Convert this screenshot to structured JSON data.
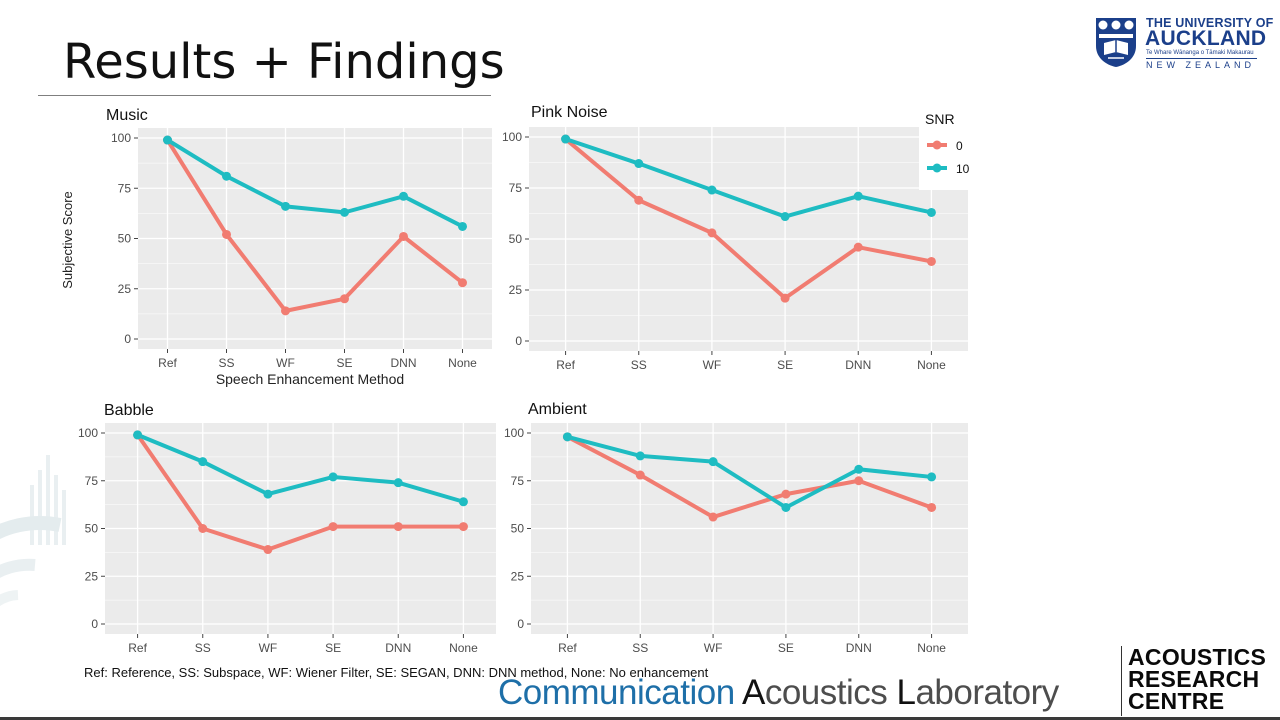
{
  "slide": {
    "title": "Results + Findings",
    "footnote": "Ref: Reference,  SS: Subspace,  WF: Wiener Filter,  SE: SEGAN,  DNN: DNN method,  None: No enhancement"
  },
  "logos": {
    "university": {
      "line1": "THE UNIVERSITY OF",
      "line2": "AUCKLAND",
      "line3": "Te Whare Wānanga o Tāmaki Makaurau",
      "line4": "NEW ZEALAND"
    },
    "lab": {
      "part1": "Communication ",
      "part2": "A",
      "part3": "coustics ",
      "part4": "L",
      "part5": "aboratory"
    },
    "centre": {
      "line1": "ACOUSTICS",
      "line2": "RESEARCH",
      "line3": "CENTRE"
    }
  },
  "colors": {
    "snr_0": "#f17c71",
    "snr_10": "#1ebcc2",
    "panel_bg": "#ebebeb",
    "grid": "#ffffff",
    "brand": "#1b3f8a"
  },
  "legend": {
    "title": "SNR",
    "items": [
      "0",
      "10"
    ]
  },
  "chart_data": [
    {
      "type": "line",
      "title": "Music",
      "xlabel": "Speech Enhancement Method",
      "ylabel": "Subjective Score",
      "categories": [
        "Ref",
        "SS",
        "WF",
        "SE",
        "DNN",
        "None"
      ],
      "yticks": [
        "0",
        "25",
        "50",
        "75",
        "100"
      ],
      "ylim": [
        0,
        100
      ],
      "grid": true,
      "series": [
        {
          "name": "0",
          "values": [
            99,
            52,
            14,
            20,
            51,
            28
          ]
        },
        {
          "name": "10",
          "values": [
            99,
            81,
            66,
            63,
            71,
            56
          ]
        }
      ]
    },
    {
      "type": "line",
      "title": "Pink Noise",
      "xlabel": "",
      "ylabel": "",
      "categories": [
        "Ref",
        "SS",
        "WF",
        "SE",
        "DNN",
        "None"
      ],
      "yticks": [
        "0",
        "25",
        "50",
        "75",
        "100"
      ],
      "ylim": [
        0,
        100
      ],
      "grid": true,
      "legend": "right",
      "series": [
        {
          "name": "0",
          "values": [
            99,
            69,
            53,
            21,
            46,
            39
          ]
        },
        {
          "name": "10",
          "values": [
            99,
            87,
            74,
            61,
            71,
            63
          ]
        }
      ]
    },
    {
      "type": "line",
      "title": "Babble",
      "xlabel": "",
      "ylabel": "",
      "categories": [
        "Ref",
        "SS",
        "WF",
        "SE",
        "DNN",
        "None"
      ],
      "yticks": [
        "0",
        "25",
        "50",
        "75",
        "100"
      ],
      "ylim": [
        0,
        100
      ],
      "grid": true,
      "series": [
        {
          "name": "0",
          "values": [
            99,
            50,
            39,
            51,
            51,
            51
          ]
        },
        {
          "name": "10",
          "values": [
            99,
            85,
            68,
            77,
            74,
            64
          ]
        }
      ]
    },
    {
      "type": "line",
      "title": "Ambient",
      "xlabel": "",
      "ylabel": "",
      "categories": [
        "Ref",
        "SS",
        "WF",
        "SE",
        "DNN",
        "None"
      ],
      "yticks": [
        "0",
        "25",
        "50",
        "75",
        "100"
      ],
      "ylim": [
        0,
        100
      ],
      "grid": true,
      "series": [
        {
          "name": "0",
          "values": [
            98,
            78,
            56,
            68,
            75,
            61
          ]
        },
        {
          "name": "10",
          "values": [
            98,
            88,
            85,
            61,
            81,
            77
          ]
        }
      ]
    }
  ]
}
